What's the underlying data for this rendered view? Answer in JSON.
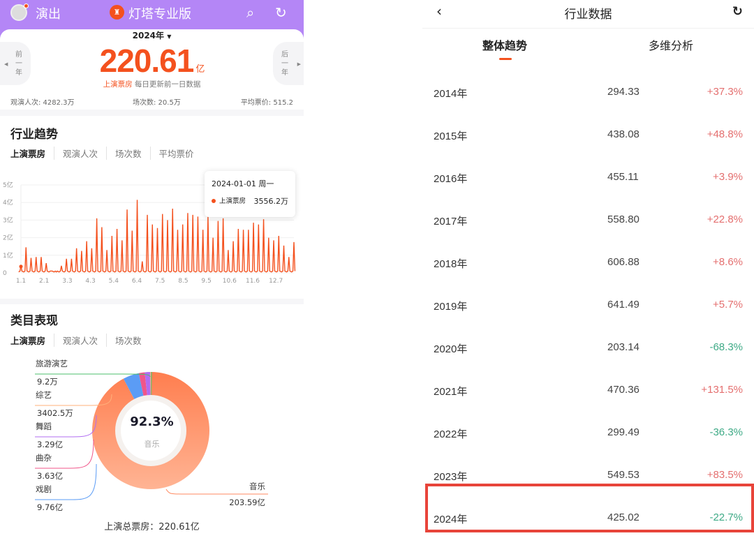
{
  "left": {
    "topbar": {
      "title": "演出",
      "brand": "灯塔专业版",
      "icons": [
        "avatar",
        "search-icon",
        "refresh-icon"
      ]
    },
    "summary": {
      "year": "2024年",
      "prev": "前一年",
      "next": "后一年",
      "value": "220.61",
      "unit": "亿",
      "label": "上演票房",
      "note": "每日更新前一日数据",
      "stats": [
        "观演人次: 4282.3万",
        "场次数: 20.5万",
        "平均票价: 515.2"
      ]
    },
    "trend": {
      "title": "行业趋势",
      "tabs": [
        "上演票房",
        "观演人次",
        "场次数",
        "平均票价"
      ],
      "tooltip": {
        "date": "2024-01-01 周一",
        "series": "上演票房",
        "value": "3556.2万"
      }
    },
    "category": {
      "title": "类目表现",
      "tabs": [
        "上演票房",
        "观演人次",
        "场次数"
      ],
      "center_pct": "92.3%",
      "center_label": "音乐",
      "total": "上演总票房：220.61亿"
    }
  },
  "chart_data": [
    {
      "type": "line",
      "ylabel": "",
      "xlabel": "",
      "y_ticks": [
        "0",
        "1亿",
        "2亿",
        "3亿",
        "4亿",
        "5亿"
      ],
      "ylim": [
        0,
        5
      ],
      "x_ticks": [
        "1.1",
        "2.1",
        "3.3",
        "4.3",
        "5.4",
        "6.4",
        "7.5",
        "8.5",
        "9.5",
        "10.6",
        "11.6",
        "12.7"
      ],
      "color": "#f4511e",
      "unit": "亿",
      "values": [
        0.4,
        1.45,
        0.85,
        0.9,
        0.9,
        0.55,
        0.1,
        0.05,
        0.4,
        0.8,
        0.8,
        1.4,
        1.25,
        1.8,
        1.4,
        3.1,
        2.6,
        1.3,
        2.1,
        2.5,
        1.85,
        3.6,
        2.4,
        4.15,
        0.65,
        3.3,
        2.75,
        2.55,
        3.35,
        3.0,
        3.65,
        2.45,
        2.75,
        3.4,
        3.3,
        3.2,
        2.45,
        3.2,
        2.0,
        2.95,
        3.1,
        1.3,
        1.8,
        2.5,
        2.45,
        2.45,
        2.85,
        2.75,
        3.05,
        2.0,
        1.85,
        2.1,
        1.55,
        0.9,
        1.75
      ]
    },
    {
      "type": "pie",
      "donut": true,
      "slices": [
        {
          "name": "音乐",
          "label": "203.59亿",
          "value": 203.59,
          "color": "#ff8a60"
        },
        {
          "name": "戏剧",
          "label": "9.76亿",
          "value": 9.76,
          "color": "#5b9cf5"
        },
        {
          "name": "曲杂",
          "label": "3.63亿",
          "value": 3.63,
          "color": "#f0568a"
        },
        {
          "name": "舞蹈",
          "label": "3.29亿",
          "value": 3.29,
          "color": "#b06cf2"
        },
        {
          "name": "综艺",
          "label": "3402.5万",
          "value": 0.34,
          "color": "#ffb07a"
        },
        {
          "name": "旅游演艺",
          "label": "9.2万",
          "value": 0.001,
          "color": "#4cbf6b"
        }
      ]
    }
  ],
  "right": {
    "title": "行业数据",
    "tabs": [
      "整体趋势",
      "多维分析"
    ],
    "rows": [
      {
        "year": "2014年",
        "value": "294.33",
        "change": "+37.3%"
      },
      {
        "year": "2015年",
        "value": "438.08",
        "change": "+48.8%"
      },
      {
        "year": "2016年",
        "value": "455.11",
        "change": "+3.9%"
      },
      {
        "year": "2017年",
        "value": "558.80",
        "change": "+22.8%"
      },
      {
        "year": "2018年",
        "value": "606.88",
        "change": "+8.6%"
      },
      {
        "year": "2019年",
        "value": "641.49",
        "change": "+5.7%"
      },
      {
        "year": "2020年",
        "value": "203.14",
        "change": "-68.3%"
      },
      {
        "year": "2021年",
        "value": "470.36",
        "change": "+131.5%"
      },
      {
        "year": "2022年",
        "value": "299.49",
        "change": "-36.3%"
      },
      {
        "year": "2023年",
        "value": "549.53",
        "change": "+83.5%"
      },
      {
        "year": "2024年",
        "value": "425.02",
        "change": "-22.7%"
      }
    ],
    "colors": {
      "positive": "#e46f6f",
      "negative": "#3eaa86",
      "highlight": "#e8443a"
    }
  }
}
